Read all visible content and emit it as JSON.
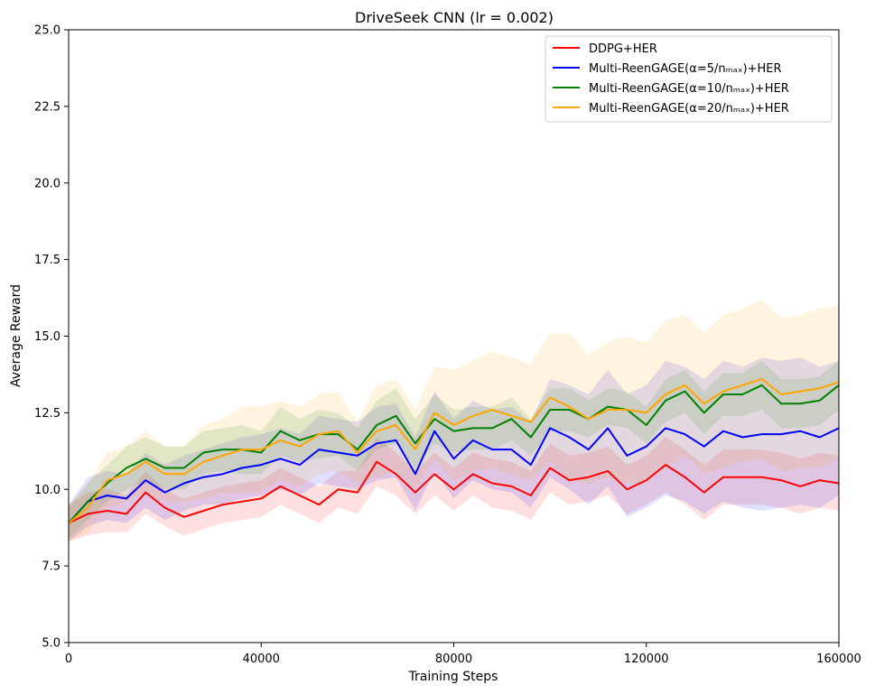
{
  "chart_data": {
    "type": "line",
    "title": "DriveSeek CNN (lr = 0.002)",
    "xlabel": "Training Steps",
    "ylabel": "Average Reward",
    "xlim": [
      0,
      160000
    ],
    "ylim": [
      5.0,
      25.0
    ],
    "x_ticks": [
      0,
      40000,
      80000,
      120000,
      160000
    ],
    "x_tick_labels": [
      "0",
      "40000",
      "80000",
      "120000",
      "160000"
    ],
    "y_ticks": [
      5.0,
      7.5,
      10.0,
      12.5,
      15.0,
      17.5,
      20.0,
      22.5,
      25.0
    ],
    "y_tick_labels": [
      "5.0",
      "7.5",
      "10.0",
      "12.5",
      "15.0",
      "17.5",
      "20.0",
      "22.5",
      "25.0"
    ],
    "legend_position": "top-right",
    "x": [
      0,
      4000,
      8000,
      12000,
      16000,
      20000,
      24000,
      28000,
      32000,
      36000,
      40000,
      44000,
      48000,
      52000,
      56000,
      60000,
      64000,
      68000,
      72000,
      76000,
      80000,
      84000,
      88000,
      92000,
      96000,
      100000,
      104000,
      108000,
      112000,
      116000,
      120000,
      124000,
      128000,
      132000,
      136000,
      140000,
      144000,
      148000,
      152000,
      156000,
      160000
    ],
    "series": [
      {
        "name": "DDPG+HER",
        "color": "#ff0000",
        "values": [
          8.9,
          9.2,
          9.3,
          9.2,
          9.9,
          9.4,
          9.1,
          9.3,
          9.5,
          9.6,
          9.7,
          10.1,
          9.8,
          9.5,
          10.0,
          9.9,
          10.9,
          10.5,
          9.9,
          10.5,
          10.0,
          10.5,
          10.2,
          10.1,
          9.8,
          10.7,
          10.3,
          10.4,
          10.6,
          10.0,
          10.3,
          10.8,
          10.4,
          9.9,
          10.4,
          10.4,
          10.4,
          10.3,
          10.1,
          10.3,
          10.2
        ],
        "spread": [
          0.6,
          0.7,
          0.7,
          0.6,
          0.7,
          0.6,
          0.6,
          0.6,
          0.6,
          0.6,
          0.6,
          0.6,
          0.6,
          0.6,
          0.6,
          0.7,
          0.8,
          0.7,
          0.7,
          0.7,
          0.7,
          0.7,
          0.8,
          0.8,
          0.8,
          0.8,
          0.8,
          0.8,
          0.8,
          0.8,
          0.8,
          0.9,
          0.9,
          0.9,
          0.9,
          0.9,
          0.9,
          0.9,
          0.9,
          0.9,
          0.9
        ]
      },
      {
        "name": "Multi-ReenGAGE(α=5/nₘₐₓ)+HER",
        "color": "#0000ff",
        "values": [
          8.9,
          9.6,
          9.8,
          9.7,
          10.3,
          9.9,
          10.2,
          10.4,
          10.5,
          10.7,
          10.8,
          11.0,
          10.8,
          11.3,
          11.2,
          11.1,
          11.5,
          11.6,
          10.5,
          11.9,
          11.0,
          11.6,
          11.3,
          11.3,
          10.8,
          12.0,
          11.7,
          11.3,
          12.0,
          11.1,
          11.4,
          12.0,
          11.8,
          11.4,
          11.9,
          11.7,
          11.8,
          11.8,
          11.9,
          11.7,
          12.0
        ],
        "spread": [
          0.6,
          0.8,
          0.8,
          0.8,
          0.9,
          0.9,
          0.9,
          0.9,
          1.0,
          1.0,
          1.0,
          1.0,
          1.0,
          1.1,
          1.1,
          1.1,
          1.2,
          1.2,
          1.2,
          1.3,
          1.3,
          1.3,
          1.3,
          1.4,
          1.4,
          1.6,
          1.7,
          1.8,
          1.9,
          2.0,
          2.0,
          2.2,
          2.2,
          2.2,
          2.3,
          2.3,
          2.5,
          2.4,
          2.4,
          2.3,
          2.2
        ]
      },
      {
        "name": "Multi-ReenGAGE(α=10/nₘₐₓ)+HER",
        "color": "#008000",
        "values": [
          8.9,
          9.6,
          10.2,
          10.7,
          11.0,
          10.7,
          10.7,
          11.2,
          11.3,
          11.3,
          11.2,
          11.9,
          11.6,
          11.8,
          11.8,
          11.3,
          12.1,
          12.4,
          11.5,
          12.3,
          11.9,
          12.0,
          12.0,
          12.3,
          11.7,
          12.6,
          12.6,
          12.3,
          12.7,
          12.6,
          12.1,
          12.9,
          13.2,
          12.5,
          13.1,
          13.1,
          13.4,
          12.8,
          12.8,
          12.9,
          13.4
        ],
        "spread": [
          0.5,
          0.6,
          0.6,
          0.7,
          0.7,
          0.7,
          0.7,
          0.7,
          0.7,
          0.8,
          0.7,
          0.8,
          0.7,
          0.8,
          0.7,
          0.7,
          0.8,
          0.9,
          0.8,
          0.8,
          0.7,
          0.7,
          0.7,
          0.7,
          0.6,
          0.7,
          0.7,
          0.6,
          0.6,
          0.6,
          0.6,
          0.7,
          0.7,
          0.7,
          0.7,
          0.7,
          0.8,
          0.8,
          0.8,
          0.8,
          0.8
        ]
      },
      {
        "name": "Multi-ReenGAGE(α=20/nₘₐₓ)+HER",
        "color": "#ffa500",
        "values": [
          8.9,
          9.4,
          10.3,
          10.5,
          10.9,
          10.5,
          10.5,
          10.9,
          11.1,
          11.3,
          11.3,
          11.6,
          11.4,
          11.8,
          11.9,
          11.2,
          11.9,
          12.1,
          11.3,
          12.5,
          12.1,
          12.4,
          12.6,
          12.4,
          12.2,
          13.0,
          12.7,
          12.3,
          12.6,
          12.6,
          12.5,
          13.1,
          13.4,
          12.8,
          13.2,
          13.4,
          13.6,
          13.1,
          13.2,
          13.3,
          13.5
        ],
        "spread": [
          0.6,
          0.8,
          0.9,
          0.9,
          1.0,
          0.9,
          0.9,
          1.2,
          1.2,
          1.4,
          1.4,
          1.3,
          1.3,
          1.3,
          1.3,
          1.0,
          1.5,
          1.5,
          1.3,
          1.5,
          1.8,
          1.8,
          1.9,
          1.9,
          1.9,
          2.1,
          2.4,
          2.1,
          2.2,
          2.4,
          2.3,
          2.4,
          2.3,
          2.3,
          2.5,
          2.5,
          2.6,
          2.5,
          2.5,
          2.6,
          2.5
        ]
      }
    ]
  }
}
